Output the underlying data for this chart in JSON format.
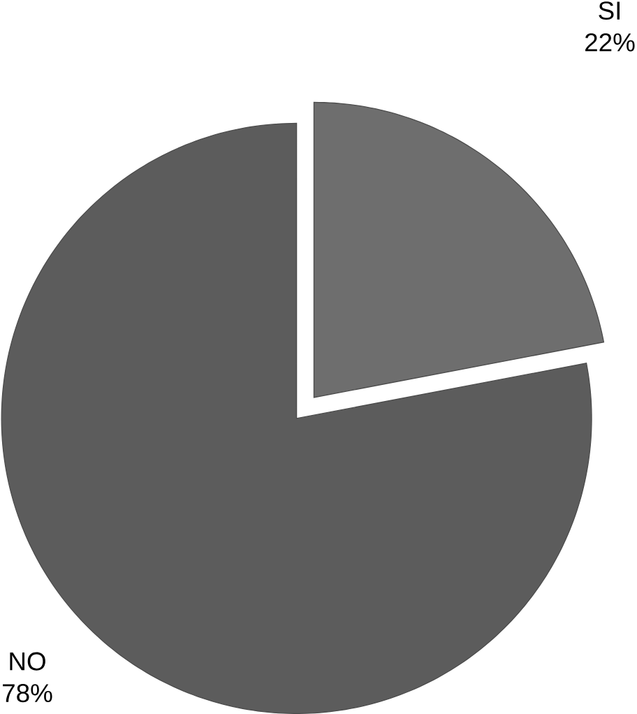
{
  "chart_data": {
    "type": "pie",
    "categories": [
      "SI",
      "NO"
    ],
    "values": [
      22,
      78
    ],
    "colors": [
      "#6e6e6e",
      "#5c5c5c"
    ],
    "value_labels": [
      "22%",
      "78%"
    ]
  }
}
